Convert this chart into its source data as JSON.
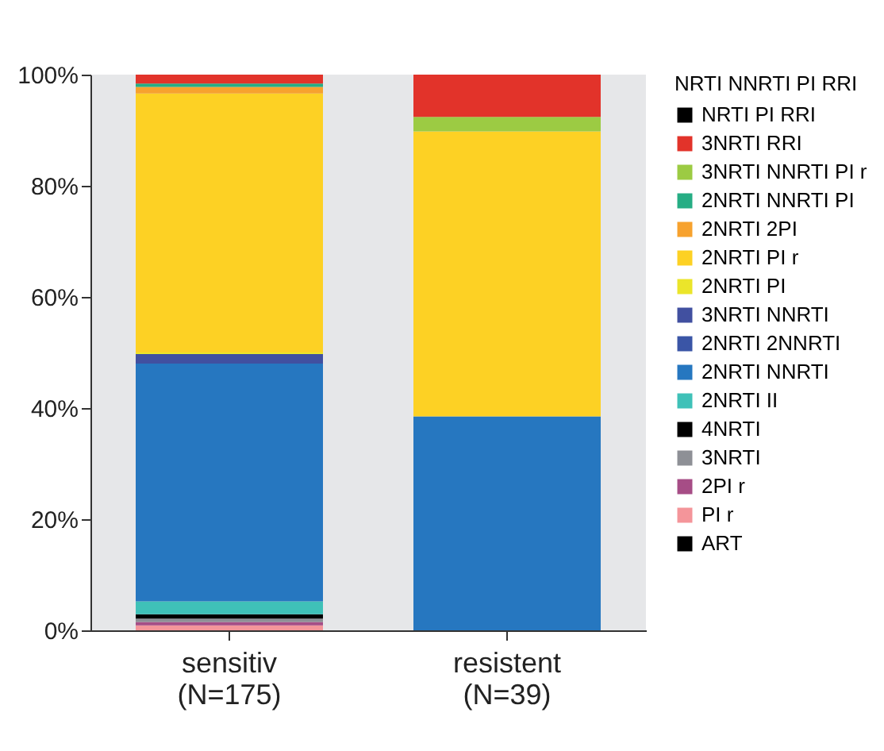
{
  "chart_data": {
    "type": "bar",
    "stacked": true,
    "categories": [
      "sensitiv\n(N=175)",
      "resistent\n(N=39)"
    ],
    "ylim": [
      0,
      100
    ],
    "yticks": [
      {
        "value": 0,
        "label": "0%"
      },
      {
        "value": 20,
        "label": "20%"
      },
      {
        "value": 40,
        "label": "40%"
      },
      {
        "value": 60,
        "label": "60%"
      },
      {
        "value": 80,
        "label": "80%"
      },
      {
        "value": 100,
        "label": "100%"
      }
    ],
    "grid": false,
    "legend": "right",
    "series": [
      {
        "name": "ART",
        "color": "#000000",
        "values": [
          0,
          0
        ]
      },
      {
        "name": "PI r",
        "color": "#f4959a",
        "values": [
          0.9,
          0
        ]
      },
      {
        "name": "2PI r",
        "color": "#a64d86",
        "values": [
          0.6,
          0
        ]
      },
      {
        "name": "3NRTI",
        "color": "#8e9096",
        "values": [
          0.6,
          0
        ]
      },
      {
        "name": "4NRTI",
        "color": "#000000",
        "values": [
          0.8,
          0
        ]
      },
      {
        "name": "2NRTI II",
        "color": "#3fc1b8",
        "values": [
          2.3,
          0
        ]
      },
      {
        "name": "2NRTI NNRTI",
        "color": "#2677c0",
        "values": [
          42.8,
          38.5
        ]
      },
      {
        "name": "2NRTI 2NNRTI",
        "color": "#3a55a6",
        "values": [
          0,
          0
        ]
      },
      {
        "name": "3NRTI NNRTI",
        "color": "#4150a0",
        "values": [
          1.7,
          0
        ]
      },
      {
        "name": "2NRTI PI",
        "color": "#ebe52a",
        "values": [
          0.3,
          0
        ]
      },
      {
        "name": "2NRTI PI r",
        "color": "#fdd124",
        "values": [
          46.6,
          51.3
        ]
      },
      {
        "name": "2NRTI 2PI",
        "color": "#f7a22e",
        "values": [
          1.2,
          0
        ]
      },
      {
        "name": "2NRTI NNRTI  PI",
        "color": "#26ad84",
        "values": [
          0.6,
          0
        ]
      },
      {
        "name": "3NRTI NNRTI  PI r",
        "color": "#9ccb43",
        "values": [
          0,
          2.6
        ]
      },
      {
        "name": "3NRTI RRI",
        "color": "#e2332a",
        "values": [
          1.6,
          7.6
        ]
      },
      {
        "name": "NRTI PI RRI",
        "color": "#000000",
        "values": [
          0,
          0
        ]
      }
    ],
    "legend_title": "NRTI NNRTI PI RRI"
  }
}
